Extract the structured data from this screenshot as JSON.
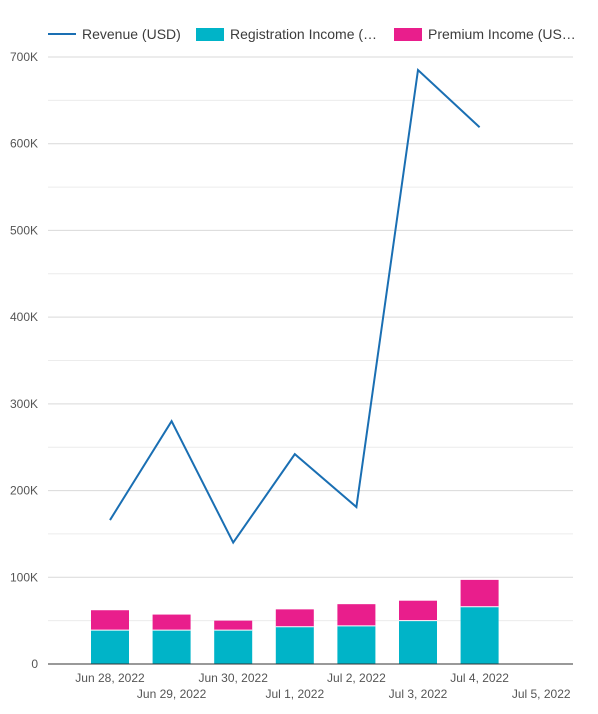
{
  "chart_data": {
    "type": "bar",
    "title": "",
    "xlabel": "",
    "ylabel": "",
    "ylim": [
      0,
      700000
    ],
    "y_ticks": [
      "0",
      "100K",
      "200K",
      "300K",
      "400K",
      "500K",
      "600K",
      "700K"
    ],
    "grid": true,
    "legend_position": "top",
    "categories": [
      "Jun 28, 2022",
      "Jun 29, 2022",
      "Jun 30, 2022",
      "Jul 1, 2022",
      "Jul 2, 2022",
      "Jul 3, 2022",
      "Jul 4, 2022",
      "Jul 5, 2022"
    ],
    "series": [
      {
        "name": "Revenue (USD)",
        "render": "line",
        "color": "#1a6fb3",
        "values": [
          166000,
          280000,
          140000,
          242000,
          181000,
          685000,
          619000,
          null
        ]
      },
      {
        "name": "Registration Income (…",
        "render": "stacked-bar",
        "color": "#00b4c8",
        "values": [
          39000,
          39000,
          39000,
          43000,
          44000,
          50000,
          66000,
          null
        ]
      },
      {
        "name": "Premium Income (US…",
        "render": "stacked-bar",
        "color": "#e91e8c",
        "values": [
          23000,
          18000,
          11000,
          20000,
          25000,
          23000,
          31000,
          null
        ]
      }
    ]
  }
}
